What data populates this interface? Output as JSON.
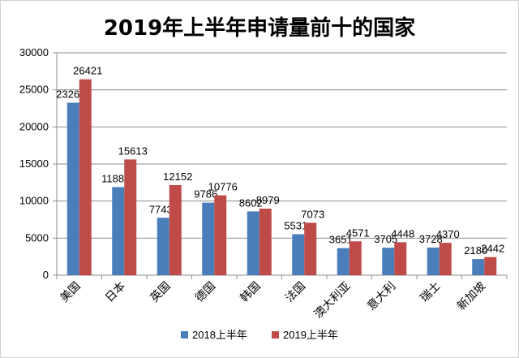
{
  "chart_data": {
    "type": "bar",
    "title": "2019年上半年申请量前十的国家",
    "xlabel": "",
    "ylabel": "",
    "categories": [
      "美国",
      "日本",
      "英国",
      "德国",
      "韩国",
      "法国",
      "澳大利亚",
      "意大利",
      "瑞士",
      "新加坡"
    ],
    "series": [
      {
        "name": "2018上半年",
        "color": "#4a7ebb",
        "values": [
          23263,
          11885,
          7743,
          9786,
          8602,
          5531,
          3651,
          3705,
          3728,
          2180
        ]
      },
      {
        "name": "2019上半年",
        "color": "#be4b48",
        "values": [
          26421,
          15613,
          12152,
          10776,
          8979,
          7073,
          4571,
          4448,
          4370,
          2442
        ]
      }
    ],
    "ylim": [
      0,
      30000
    ],
    "yticks": [
      0,
      5000,
      10000,
      15000,
      20000,
      25000,
      30000
    ],
    "grid": true,
    "legend": "bottom"
  }
}
